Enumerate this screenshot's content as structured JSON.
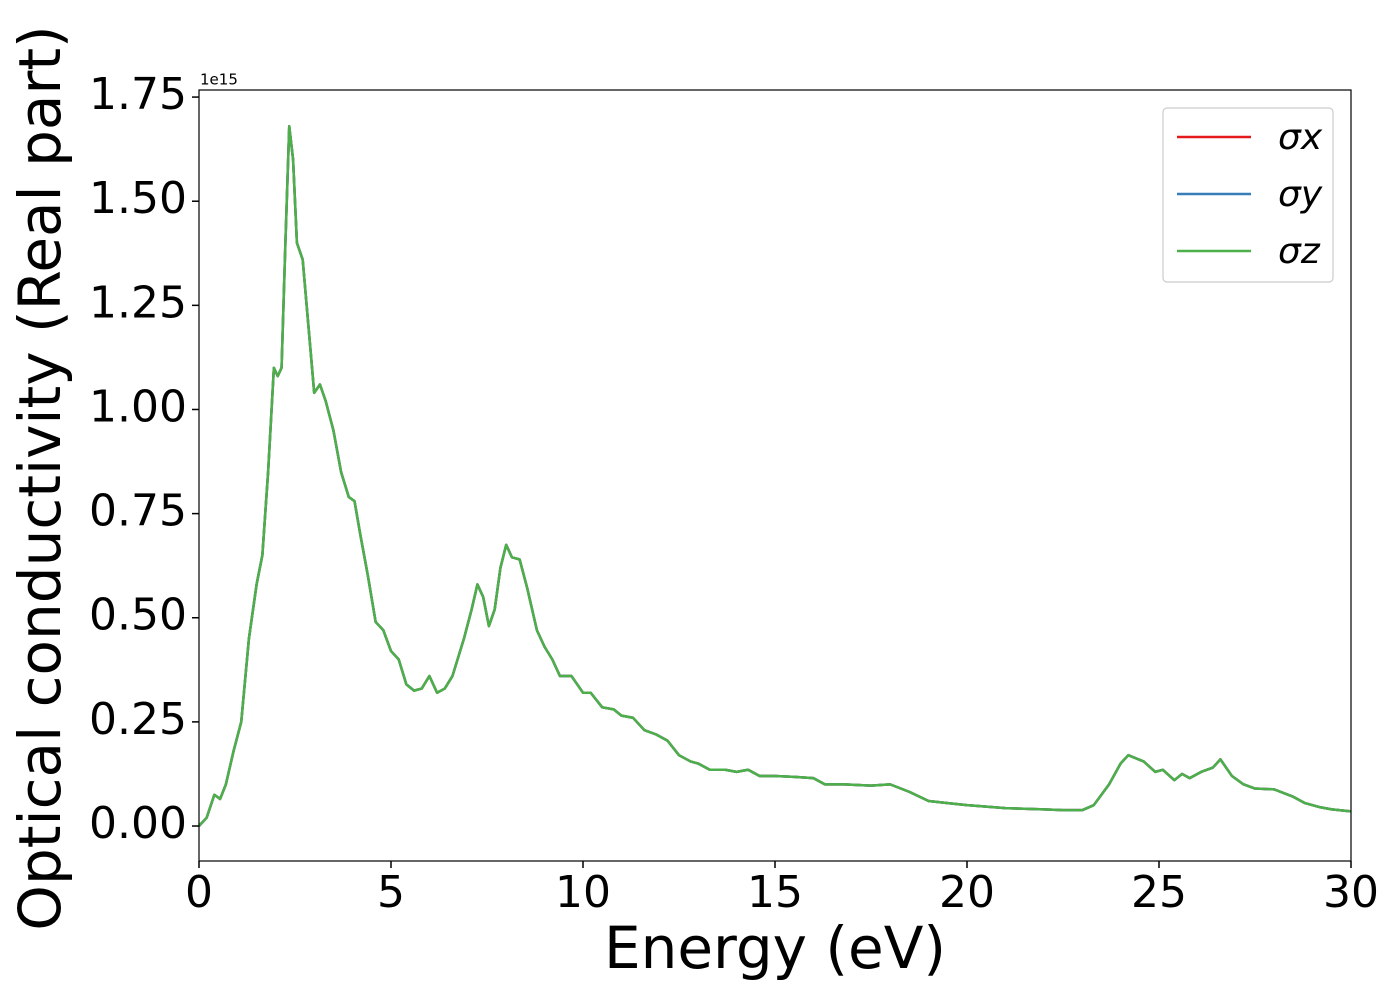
{
  "chart_data": {
    "type": "line",
    "x_label": "Energy (eV)",
    "y_label": "Optical conductivity (Real part)",
    "y_offset_label": "1e15",
    "x": [
      0,
      0.2,
      0.4,
      0.55,
      0.7,
      0.9,
      1.1,
      1.3,
      1.5,
      1.65,
      1.8,
      1.95,
      2.05,
      2.15,
      2.25,
      2.35,
      2.45,
      2.55,
      2.7,
      2.85,
      3.0,
      3.15,
      3.3,
      3.5,
      3.7,
      3.9,
      4.05,
      4.2,
      4.4,
      4.6,
      4.8,
      5.0,
      5.2,
      5.4,
      5.6,
      5.8,
      6.0,
      6.2,
      6.4,
      6.6,
      6.9,
      7.1,
      7.25,
      7.4,
      7.55,
      7.7,
      7.85,
      8.0,
      8.15,
      8.35,
      8.55,
      8.8,
      9.0,
      9.2,
      9.4,
      9.7,
      10.0,
      10.2,
      10.5,
      10.8,
      11.0,
      11.3,
      11.6,
      11.9,
      12.2,
      12.5,
      12.8,
      13.0,
      13.3,
      13.7,
      14.0,
      14.3,
      14.6,
      15.0,
      15.5,
      16.0,
      16.3,
      16.8,
      17.5,
      18.0,
      18.5,
      19.0,
      19.5,
      20.0,
      21.0,
      22.0,
      22.5,
      23.0,
      23.3,
      23.7,
      24.0,
      24.2,
      24.6,
      24.9,
      25.1,
      25.4,
      25.6,
      25.8,
      26.1,
      26.4,
      26.6,
      26.9,
      27.2,
      27.5,
      28.0,
      28.5,
      28.8,
      29.2,
      29.5,
      30.0
    ],
    "series": [
      {
        "name": "σx",
        "color": "#e41a1c",
        "values": [
          0,
          0.02,
          0.075,
          0.065,
          0.1,
          0.18,
          0.25,
          0.45,
          0.58,
          0.65,
          0.85,
          1.1,
          1.08,
          1.1,
          1.4,
          1.68,
          1.6,
          1.4,
          1.36,
          1.2,
          1.04,
          1.06,
          1.02,
          0.95,
          0.85,
          0.79,
          0.78,
          0.7,
          0.6,
          0.49,
          0.47,
          0.42,
          0.4,
          0.34,
          0.325,
          0.33,
          0.36,
          0.32,
          0.33,
          0.36,
          0.45,
          0.52,
          0.58,
          0.55,
          0.48,
          0.52,
          0.62,
          0.675,
          0.645,
          0.64,
          0.57,
          0.47,
          0.43,
          0.4,
          0.36,
          0.36,
          0.32,
          0.32,
          0.285,
          0.28,
          0.265,
          0.26,
          0.23,
          0.22,
          0.205,
          0.17,
          0.155,
          0.15,
          0.135,
          0.135,
          0.13,
          0.135,
          0.12,
          0.12,
          0.118,
          0.115,
          0.1,
          0.1,
          0.097,
          0.1,
          0.082,
          0.06,
          0.055,
          0.05,
          0.043,
          0.04,
          0.038,
          0.038,
          0.05,
          0.1,
          0.15,
          0.17,
          0.155,
          0.13,
          0.135,
          0.11,
          0.125,
          0.115,
          0.13,
          0.14,
          0.16,
          0.12,
          0.1,
          0.09,
          0.088,
          0.07,
          0.055,
          0.045,
          0.04,
          0.035
        ]
      },
      {
        "name": "σy",
        "color": "#377eb8",
        "values": [
          0,
          0.02,
          0.075,
          0.065,
          0.1,
          0.18,
          0.25,
          0.45,
          0.58,
          0.65,
          0.85,
          1.1,
          1.08,
          1.1,
          1.4,
          1.68,
          1.6,
          1.4,
          1.36,
          1.2,
          1.04,
          1.06,
          1.02,
          0.95,
          0.85,
          0.79,
          0.78,
          0.7,
          0.6,
          0.49,
          0.47,
          0.42,
          0.4,
          0.34,
          0.325,
          0.33,
          0.36,
          0.32,
          0.33,
          0.36,
          0.45,
          0.52,
          0.58,
          0.55,
          0.48,
          0.52,
          0.62,
          0.675,
          0.645,
          0.64,
          0.57,
          0.47,
          0.43,
          0.4,
          0.36,
          0.36,
          0.32,
          0.32,
          0.285,
          0.28,
          0.265,
          0.26,
          0.23,
          0.22,
          0.205,
          0.17,
          0.155,
          0.15,
          0.135,
          0.135,
          0.13,
          0.135,
          0.12,
          0.12,
          0.118,
          0.115,
          0.1,
          0.1,
          0.097,
          0.1,
          0.082,
          0.06,
          0.055,
          0.05,
          0.043,
          0.04,
          0.038,
          0.038,
          0.05,
          0.1,
          0.15,
          0.17,
          0.155,
          0.13,
          0.135,
          0.11,
          0.125,
          0.115,
          0.13,
          0.14,
          0.16,
          0.12,
          0.1,
          0.09,
          0.088,
          0.07,
          0.055,
          0.045,
          0.04,
          0.035
        ]
      },
      {
        "name": "σz",
        "color": "#4daf4a",
        "values": [
          0,
          0.02,
          0.075,
          0.065,
          0.1,
          0.18,
          0.25,
          0.45,
          0.58,
          0.65,
          0.85,
          1.1,
          1.08,
          1.1,
          1.4,
          1.68,
          1.6,
          1.4,
          1.36,
          1.2,
          1.04,
          1.06,
          1.02,
          0.95,
          0.85,
          0.79,
          0.78,
          0.7,
          0.6,
          0.49,
          0.47,
          0.42,
          0.4,
          0.34,
          0.325,
          0.33,
          0.36,
          0.32,
          0.33,
          0.36,
          0.45,
          0.52,
          0.58,
          0.55,
          0.48,
          0.52,
          0.62,
          0.675,
          0.645,
          0.64,
          0.57,
          0.47,
          0.43,
          0.4,
          0.36,
          0.36,
          0.32,
          0.32,
          0.285,
          0.28,
          0.265,
          0.26,
          0.23,
          0.22,
          0.205,
          0.17,
          0.155,
          0.15,
          0.135,
          0.135,
          0.13,
          0.135,
          0.12,
          0.12,
          0.118,
          0.115,
          0.1,
          0.1,
          0.097,
          0.1,
          0.082,
          0.06,
          0.055,
          0.05,
          0.043,
          0.04,
          0.038,
          0.038,
          0.05,
          0.1,
          0.15,
          0.17,
          0.155,
          0.13,
          0.135,
          0.11,
          0.125,
          0.115,
          0.13,
          0.14,
          0.16,
          0.12,
          0.1,
          0.09,
          0.088,
          0.07,
          0.055,
          0.045,
          0.04,
          0.035
        ]
      }
    ],
    "xlim": [
      0,
      30
    ],
    "xticks": [
      0,
      5,
      10,
      15,
      20,
      25,
      30
    ],
    "ylim": [
      -0.084,
      1.767
    ],
    "yticks": [
      {
        "value": 0,
        "label": "0.00"
      },
      0.25,
      {
        "value": 0.5,
        "label": "0.50"
      },
      0.75,
      {
        "value": 1,
        "label": "1.00"
      },
      1.25,
      {
        "value": 1.5,
        "label": "1.50"
      },
      1.75
    ],
    "legend": "upper right",
    "grid": false
  }
}
